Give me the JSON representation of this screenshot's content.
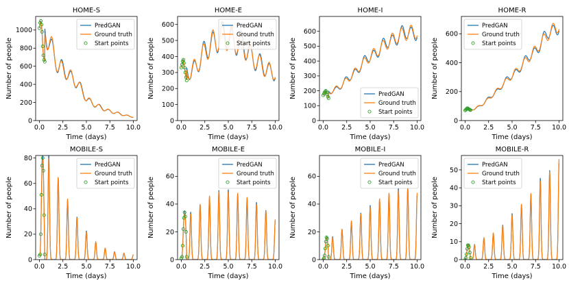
{
  "legend_labels": [
    "PredGAN",
    "Ground truth",
    "Start points"
  ],
  "colors": {
    "pred": "#1f77b4",
    "truth": "#ff7f0e",
    "start": "#2ca02c"
  },
  "chart_data": [
    {
      "type": "line",
      "title": "HOME-S",
      "xlabel": "Time (days)",
      "ylabel": "Number of people",
      "xlim": [
        -0.4,
        10.4
      ],
      "ylim": [
        0,
        1150
      ],
      "xticks": [
        "0.0",
        "2.5",
        "5.0",
        "7.5",
        "10.0"
      ],
      "yticks": [
        0,
        200,
        400,
        600,
        800,
        1000
      ],
      "legend": "top-right",
      "amp": 0.15,
      "trend": [
        [
          0,
          1020
        ],
        [
          1,
          900
        ],
        [
          2,
          600
        ],
        [
          3,
          520
        ],
        [
          4,
          420
        ],
        [
          5,
          240
        ],
        [
          6,
          170
        ],
        [
          7,
          120
        ],
        [
          8,
          90
        ],
        [
          9,
          60
        ],
        [
          10,
          40
        ]
      ],
      "start_points": [
        [
          0.0,
          1020
        ],
        [
          0.08,
          1080
        ],
        [
          0.15,
          1100
        ],
        [
          0.22,
          1060
        ],
        [
          0.28,
          980
        ],
        [
          0.35,
          820
        ],
        [
          0.42,
          720
        ],
        [
          0.5,
          670
        ],
        [
          0.57,
          650
        ]
      ]
    },
    {
      "type": "line",
      "title": "HOME-E",
      "xlabel": "Time (days)",
      "ylabel": "Number of people",
      "xlim": [
        -0.4,
        10.4
      ],
      "ylim": [
        0,
        650
      ],
      "xticks": [
        "0.0",
        "2.5",
        "5.0",
        "7.5",
        "10.0"
      ],
      "yticks": [
        0,
        100,
        200,
        300,
        400,
        500,
        600
      ],
      "legend": "top-right",
      "amp": 0.16,
      "trend": [
        [
          0,
          320
        ],
        [
          1,
          300
        ],
        [
          2,
          380
        ],
        [
          3,
          470
        ],
        [
          4,
          520
        ],
        [
          5,
          520
        ],
        [
          6,
          490
        ],
        [
          7,
          440
        ],
        [
          8,
          370
        ],
        [
          9,
          320
        ],
        [
          10,
          300
        ]
      ],
      "start_points": [
        [
          0.0,
          330
        ],
        [
          0.08,
          350
        ],
        [
          0.15,
          370
        ],
        [
          0.22,
          380
        ],
        [
          0.28,
          360
        ],
        [
          0.35,
          330
        ],
        [
          0.42,
          300
        ],
        [
          0.5,
          270
        ],
        [
          0.57,
          250
        ]
      ]
    },
    {
      "type": "line",
      "title": "HOME-I",
      "xlabel": "Time (days)",
      "ylabel": "Number of people",
      "xlim": [
        -0.4,
        10.4
      ],
      "ylim": [
        0,
        700
      ],
      "xticks": [
        "0.0",
        "2.5",
        "5.0",
        "7.5",
        "10.0"
      ],
      "yticks": [
        0,
        100,
        200,
        300,
        400,
        500,
        600
      ],
      "legend": "bottom-right",
      "amp": 0.08,
      "trend": [
        [
          0,
          170
        ],
        [
          1,
          200
        ],
        [
          2,
          240
        ],
        [
          3,
          300
        ],
        [
          4,
          370
        ],
        [
          5,
          430
        ],
        [
          6,
          480
        ],
        [
          7,
          530
        ],
        [
          8,
          570
        ],
        [
          9,
          590
        ],
        [
          10,
          600
        ]
      ],
      "start_points": [
        [
          0.0,
          170
        ],
        [
          0.08,
          180
        ],
        [
          0.15,
          190
        ],
        [
          0.22,
          195
        ],
        [
          0.28,
          200
        ],
        [
          0.35,
          190
        ],
        [
          0.42,
          175
        ],
        [
          0.5,
          160
        ],
        [
          0.57,
          150
        ]
      ]
    },
    {
      "type": "line",
      "title": "HOME-R",
      "xlabel": "Time (days)",
      "ylabel": "Number of people",
      "xlim": [
        -0.4,
        10.4
      ],
      "ylim": [
        0,
        720
      ],
      "xticks": [
        "0.0",
        "2.5",
        "5.0",
        "7.5",
        "10.0"
      ],
      "yticks": [
        0,
        200,
        400,
        600
      ],
      "legend": "top-left",
      "amp": 0.07,
      "trend": [
        [
          0,
          70
        ],
        [
          1,
          80
        ],
        [
          2,
          120
        ],
        [
          3,
          180
        ],
        [
          4,
          250
        ],
        [
          5,
          310
        ],
        [
          6,
          380
        ],
        [
          7,
          450
        ],
        [
          8,
          530
        ],
        [
          9,
          610
        ],
        [
          10,
          660
        ]
      ],
      "start_points": [
        [
          0.0,
          70
        ],
        [
          0.08,
          75
        ],
        [
          0.15,
          80
        ],
        [
          0.22,
          85
        ],
        [
          0.28,
          85
        ],
        [
          0.35,
          80
        ],
        [
          0.42,
          78
        ],
        [
          0.5,
          75
        ],
        [
          0.57,
          72
        ]
      ]
    },
    {
      "type": "line",
      "title": "MOBILE-S",
      "xlabel": "Time (days)",
      "ylabel": "Number of people",
      "xlim": [
        -0.4,
        10.4
      ],
      "ylim": [
        0,
        82
      ],
      "xticks": [
        "0.0",
        "2.5",
        "5.0",
        "7.5",
        "10.0"
      ],
      "yticks": [
        0,
        20,
        40,
        60,
        80
      ],
      "legend": "top-right",
      "spiky": true,
      "peaks": [
        [
          1,
          80
        ],
        [
          2,
          65
        ],
        [
          3,
          48
        ],
        [
          4,
          33
        ],
        [
          5,
          22
        ],
        [
          6,
          14
        ],
        [
          7,
          9
        ],
        [
          8,
          6
        ],
        [
          9,
          5
        ],
        [
          10,
          4
        ]
      ],
      "start_points": [
        [
          0.0,
          3
        ],
        [
          0.08,
          4
        ],
        [
          0.15,
          20
        ],
        [
          0.22,
          51
        ],
        [
          0.28,
          74
        ],
        [
          0.35,
          80
        ],
        [
          0.42,
          70
        ],
        [
          0.5,
          35
        ],
        [
          0.57,
          4
        ]
      ]
    },
    {
      "type": "line",
      "title": "MOBILE-E",
      "xlabel": "Time (days)",
      "ylabel": "Number of people",
      "xlim": [
        -0.4,
        10.4
      ],
      "ylim": [
        0,
        75
      ],
      "xticks": [
        "0.0",
        "2.5",
        "5.0",
        "7.5",
        "10.0"
      ],
      "yticks": [
        0,
        20,
        40,
        60
      ],
      "legend": "top-right",
      "spiky": true,
      "peaks": [
        [
          1,
          33
        ],
        [
          2,
          40
        ],
        [
          3,
          46
        ],
        [
          4,
          49
        ],
        [
          5,
          49
        ],
        [
          6,
          48
        ],
        [
          7,
          45
        ],
        [
          8,
          40
        ],
        [
          9,
          35
        ],
        [
          10,
          29
        ]
      ],
      "start_points": [
        [
          0.0,
          1
        ],
        [
          0.08,
          2
        ],
        [
          0.15,
          10
        ],
        [
          0.22,
          22
        ],
        [
          0.28,
          30
        ],
        [
          0.35,
          34
        ],
        [
          0.42,
          31
        ],
        [
          0.5,
          20
        ],
        [
          0.57,
          2
        ]
      ]
    },
    {
      "type": "line",
      "title": "MOBILE-I",
      "xlabel": "Time (days)",
      "ylabel": "Number of people",
      "xlim": [
        -0.4,
        10.4
      ],
      "ylim": [
        0,
        75
      ],
      "xticks": [
        "0.0",
        "2.5",
        "5.0",
        "7.5",
        "10.0"
      ],
      "yticks": [
        0,
        20,
        40,
        60
      ],
      "legend": "top-right",
      "spiky": true,
      "peaks": [
        [
          1,
          16
        ],
        [
          2,
          22
        ],
        [
          3,
          28
        ],
        [
          4,
          33
        ],
        [
          5,
          38
        ],
        [
          6,
          44
        ],
        [
          7,
          48
        ],
        [
          8,
          50
        ],
        [
          9,
          51
        ],
        [
          10,
          48
        ]
      ],
      "start_points": [
        [
          0.0,
          0
        ],
        [
          0.08,
          1
        ],
        [
          0.15,
          3
        ],
        [
          0.22,
          8
        ],
        [
          0.28,
          13
        ],
        [
          0.35,
          16
        ],
        [
          0.42,
          15
        ],
        [
          0.5,
          10
        ],
        [
          0.57,
          2
        ]
      ]
    },
    {
      "type": "line",
      "title": "MOBILE-R",
      "xlabel": "Time (days)",
      "ylabel": "Number of people",
      "xlim": [
        -0.4,
        10.4
      ],
      "ylim": [
        0,
        58
      ],
      "xticks": [
        "0.0",
        "2.5",
        "5.0",
        "7.5",
        "10.0"
      ],
      "yticks": [
        0,
        10,
        20,
        30,
        40,
        50
      ],
      "legend": "top-left",
      "spiky": true,
      "peaks": [
        [
          1,
          8
        ],
        [
          2,
          12
        ],
        [
          3,
          15
        ],
        [
          4,
          19
        ],
        [
          5,
          25
        ],
        [
          6,
          31
        ],
        [
          7,
          37
        ],
        [
          8,
          44
        ],
        [
          9,
          49
        ],
        [
          10,
          56
        ]
      ],
      "start_points": [
        [
          0.0,
          0
        ],
        [
          0.08,
          1
        ],
        [
          0.15,
          3
        ],
        [
          0.22,
          6
        ],
        [
          0.28,
          8
        ],
        [
          0.35,
          8
        ],
        [
          0.42,
          7
        ],
        [
          0.5,
          4
        ],
        [
          0.57,
          1
        ]
      ]
    }
  ]
}
